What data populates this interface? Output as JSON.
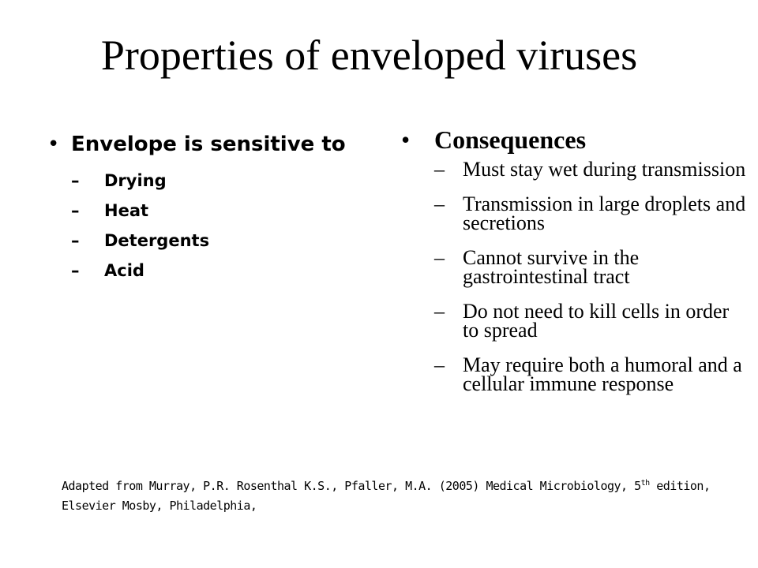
{
  "slide": {
    "title": "Properties of enveloped viruses"
  },
  "left": {
    "bullet": "•",
    "heading": "Envelope is sensitive to",
    "dash": "–",
    "items": [
      "Drying",
      "Heat",
      "Detergents",
      "Acid"
    ]
  },
  "right": {
    "bullet": "•",
    "heading": "Consequences",
    "dash": "–",
    "items": [
      "Must stay wet during transmission",
      "Transmission in large droplets and secretions",
      "Cannot survive in the gastrointestinal tract",
      "Do not need to kill cells in order to spread",
      "May require both a humoral and a cellular immune response"
    ]
  },
  "citation": {
    "text_before": "Adapted from Murray, P.R. Rosenthal K.S., Pfaller, M.A. (2005) Medical Microbiology, 5",
    "superscript": "th",
    "text_after": " edition, Elsevier Mosby, Philadelphia,"
  }
}
